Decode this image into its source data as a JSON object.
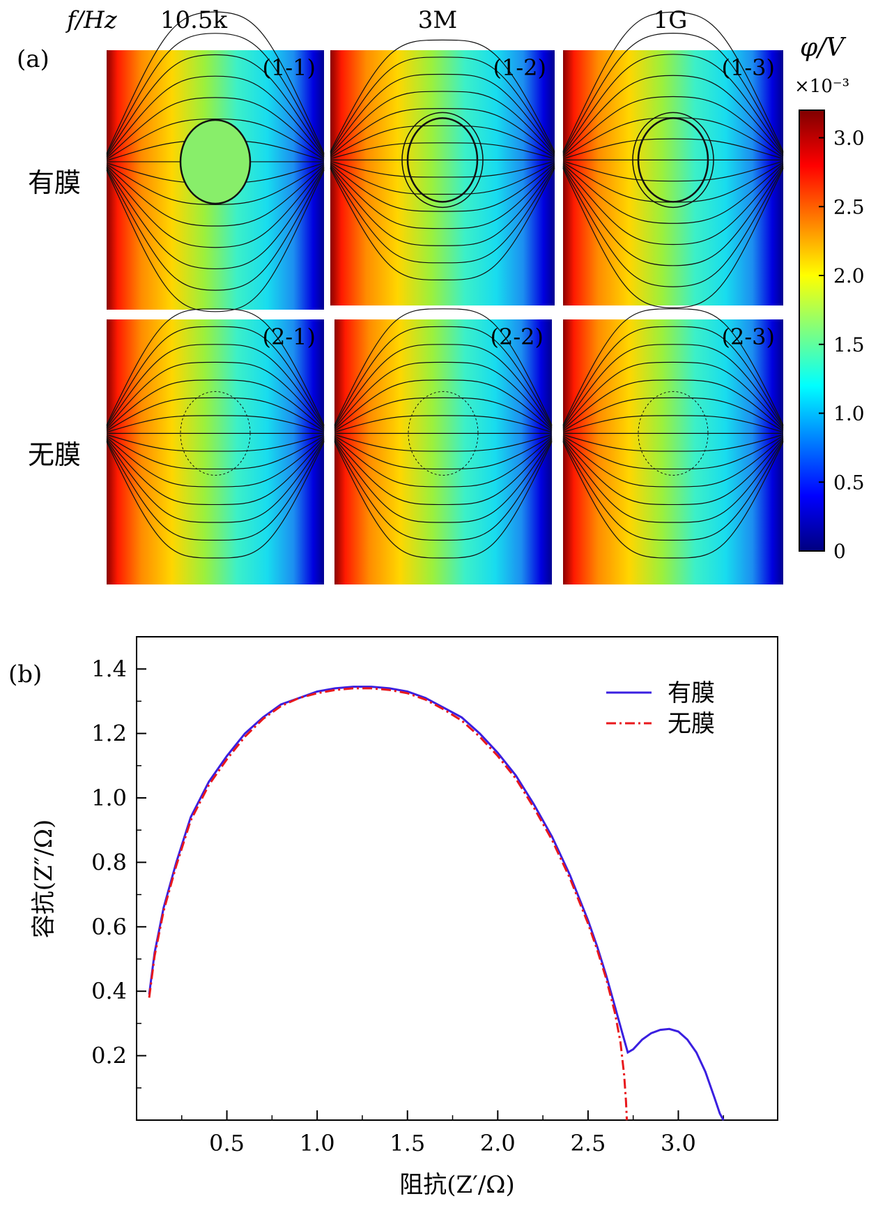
{
  "panel_a": {
    "label": "(a)",
    "freq_title": "f/Hz",
    "freq_labels": [
      "10.5k",
      "3M",
      "1G"
    ],
    "row_labels": [
      "有膜",
      "无膜"
    ],
    "panel_tags": [
      [
        "(1-1)",
        "(1-2)",
        "(1-3)"
      ],
      [
        "(2-1)",
        "(2-2)",
        "(2-3)"
      ]
    ],
    "colorbar": {
      "title": "φ/V",
      "multiplier": "×10⁻³",
      "ticks": [
        "3.0",
        "2.5",
        "2.0",
        "1.5",
        "1.0",
        "0.5",
        "0"
      ],
      "range": [
        0,
        3.2
      ],
      "colors": [
        "#00007f",
        "#0000ff",
        "#007fff",
        "#00ffff",
        "#7fff7f",
        "#ffff00",
        "#ff7f00",
        "#ff0000",
        "#7f0000"
      ]
    }
  },
  "chart_data": {
    "type": "line",
    "label": "(b)",
    "xlabel": "阻抗(Z′/Ω)",
    "ylabel": "容抗(Z″/Ω)",
    "xlim": [
      0,
      3.55
    ],
    "ylim": [
      0,
      1.5
    ],
    "xticks": [
      0.5,
      1.0,
      1.5,
      2.0,
      2.5,
      3.0
    ],
    "yticks": [
      0.2,
      0.4,
      0.6,
      0.8,
      1.0,
      1.2,
      1.4
    ],
    "legend_position": "top-right",
    "series": [
      {
        "name": "有膜",
        "color": "#3a1fe0",
        "style": "solid",
        "x": [
          0.07,
          0.1,
          0.15,
          0.22,
          0.3,
          0.4,
          0.5,
          0.6,
          0.7,
          0.8,
          0.9,
          1.0,
          1.1,
          1.2,
          1.3,
          1.4,
          1.5,
          1.6,
          1.7,
          1.8,
          1.9,
          2.0,
          2.1,
          2.2,
          2.3,
          2.4,
          2.5,
          2.55,
          2.6,
          2.65,
          2.69,
          2.72,
          2.75,
          2.8,
          2.85,
          2.9,
          2.95,
          3.0,
          3.05,
          3.1,
          3.15,
          3.2,
          3.23,
          3.25
        ],
        "y": [
          0.39,
          0.52,
          0.66,
          0.8,
          0.94,
          1.05,
          1.13,
          1.2,
          1.25,
          1.29,
          1.31,
          1.33,
          1.34,
          1.345,
          1.345,
          1.34,
          1.33,
          1.31,
          1.28,
          1.25,
          1.2,
          1.14,
          1.07,
          0.98,
          0.88,
          0.76,
          0.62,
          0.54,
          0.45,
          0.35,
          0.27,
          0.21,
          0.22,
          0.25,
          0.27,
          0.28,
          0.283,
          0.275,
          0.25,
          0.21,
          0.15,
          0.07,
          0.02,
          0.0
        ]
      },
      {
        "name": "无膜",
        "color": "#e8181c",
        "style": "dashdot",
        "x": [
          0.07,
          0.1,
          0.15,
          0.22,
          0.3,
          0.4,
          0.5,
          0.6,
          0.7,
          0.8,
          0.9,
          1.0,
          1.1,
          1.2,
          1.3,
          1.4,
          1.5,
          1.6,
          1.7,
          1.8,
          1.9,
          2.0,
          2.1,
          2.2,
          2.3,
          2.4,
          2.5,
          2.55,
          2.6,
          2.65,
          2.68,
          2.7,
          2.71,
          2.715
        ],
        "y": [
          0.38,
          0.51,
          0.65,
          0.79,
          0.93,
          1.04,
          1.12,
          1.19,
          1.245,
          1.285,
          1.31,
          1.325,
          1.335,
          1.34,
          1.34,
          1.335,
          1.325,
          1.305,
          1.275,
          1.24,
          1.19,
          1.13,
          1.06,
          0.97,
          0.87,
          0.75,
          0.61,
          0.53,
          0.44,
          0.33,
          0.24,
          0.14,
          0.06,
          0.0
        ]
      }
    ]
  }
}
